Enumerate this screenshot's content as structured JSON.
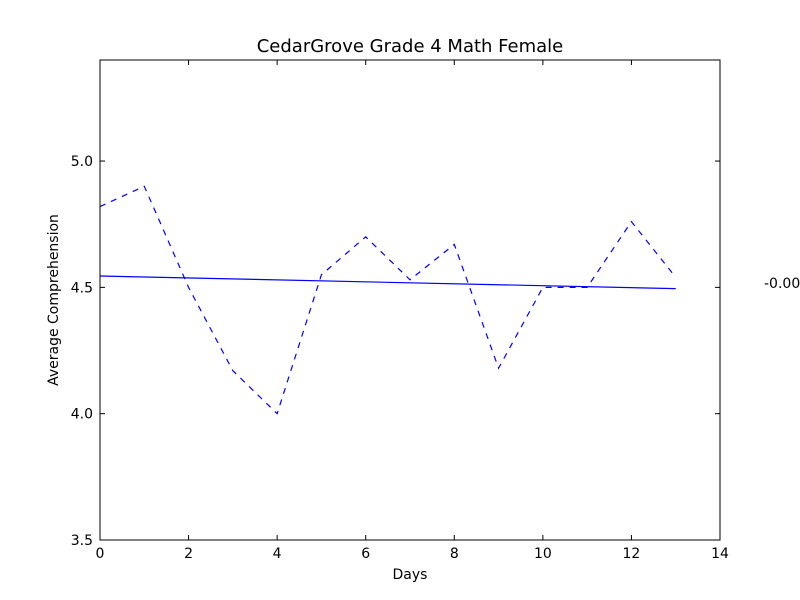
{
  "chart_data": {
    "type": "line",
    "title": "CedarGrove Grade 4 Math Female",
    "xlabel": "Days",
    "ylabel": "Average Comprehension",
    "xlim": [
      0,
      14
    ],
    "ylim": [
      3.5,
      5.4
    ],
    "x_ticks": [
      "0",
      "2",
      "4",
      "6",
      "8",
      "10",
      "12",
      "14"
    ],
    "y_ticks": [
      "3.5",
      "4.0",
      "4.5",
      "5.0"
    ],
    "grid": false,
    "legend": "none",
    "annotation": "-0.00",
    "colors": {
      "series": "#0000ff",
      "axes": "#000000"
    },
    "series": [
      {
        "style": "dashed",
        "x": [
          0,
          1,
          2,
          3,
          4,
          5,
          6,
          7,
          8,
          9,
          10,
          11,
          12,
          13
        ],
        "y": [
          4.82,
          4.9,
          4.5,
          4.17,
          4.0,
          4.55,
          4.7,
          4.53,
          4.67,
          4.18,
          4.5,
          4.5,
          4.76,
          4.54
        ]
      },
      {
        "style": "solid",
        "x": [
          0,
          13
        ],
        "y": [
          4.545,
          4.495
        ]
      }
    ]
  }
}
